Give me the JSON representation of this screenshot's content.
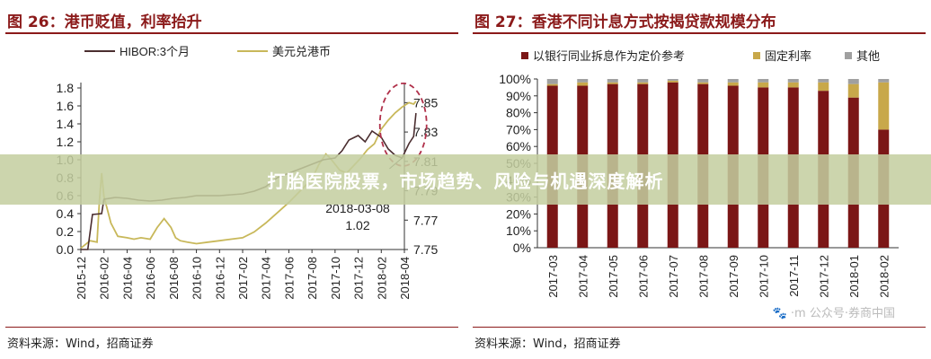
{
  "banner": {
    "text": "打胎医院股票，市场趋势、风险与机遇深度解析"
  },
  "watermark": {
    "text": "🐾 ·m 公众号·券商中国"
  },
  "left": {
    "title": "图 26：港币贬值，利率抬升",
    "source": "资料来源：Wind，招商证券"
  },
  "right": {
    "title": "图 27：香港不同计息方式按揭贷款规模分布",
    "source": "资料来源：Wind，招商证券"
  },
  "colors": {
    "hibor": "#4a2d2f",
    "usdhkd": "#c8b85a",
    "bar_main": "#7b1616",
    "bar_fixed": "#c8a84a",
    "bar_other": "#a0a0a0",
    "ellipse": "#b0304a"
  },
  "chart_data": [
    {
      "type": "line",
      "title": "",
      "left_axis": {
        "ylim": [
          0.0,
          1.8
        ],
        "ticks": [
          "0.0",
          "0.2",
          "0.4",
          "0.6",
          "0.8",
          "1.0",
          "1.2",
          "1.4",
          "1.6",
          "1.8"
        ]
      },
      "right_axis": {
        "ylim": [
          7.75,
          7.86
        ],
        "ticks": [
          "7.75",
          "7.77",
          "7.79",
          "7.81",
          "7.83",
          "7.85"
        ]
      },
      "x_ticks": [
        "2015-12",
        "2016-02",
        "2016-04",
        "2016-06",
        "2016-08",
        "2016-10",
        "2016-12",
        "2017-02",
        "2017-04",
        "2017-06",
        "2017-08",
        "2017-10",
        "2017-12",
        "2018-02",
        "2018-04"
      ],
      "annotation": {
        "date": "2018-03-08",
        "value": "1.02"
      },
      "series": [
        {
          "name": "HIBOR:3个月",
          "axis": "left",
          "x": [
            0,
            0.3,
            0.5,
            0.9,
            1.0,
            1.5,
            2,
            2.5,
            3,
            3.5,
            4,
            4.5,
            5,
            5.5,
            6,
            6.5,
            7,
            7.5,
            8,
            8.5,
            9,
            9.5,
            10,
            10.5,
            11,
            11.3,
            11.6,
            12,
            12.3,
            12.6,
            13,
            13.3,
            13.6,
            13.9,
            14.2,
            14.4,
            14.5
          ],
          "y": [
            0.0,
            0.0,
            0.39,
            0.4,
            0.56,
            0.58,
            0.57,
            0.55,
            0.54,
            0.55,
            0.57,
            0.58,
            0.6,
            0.6,
            0.6,
            0.61,
            0.62,
            0.65,
            0.7,
            0.8,
            0.85,
            0.9,
            0.95,
            1.0,
            1.02,
            1.1,
            1.22,
            1.27,
            1.2,
            1.32,
            1.25,
            1.12,
            1.05,
            1.02,
            1.18,
            1.26,
            1.52
          ]
        },
        {
          "name": "美元兑港币",
          "axis": "right",
          "x": [
            0,
            0.4,
            0.7,
            0.8,
            0.9,
            1.0,
            1.1,
            1.3,
            1.6,
            2,
            2.3,
            2.6,
            3,
            3.3,
            3.6,
            3.9,
            4.1,
            4.3,
            4.6,
            5,
            5.5,
            6,
            6.5,
            7,
            7.5,
            8,
            8.5,
            9,
            9.5,
            10,
            10.3,
            10.6,
            10.8,
            11,
            11.2,
            11.5,
            11.8,
            12.1,
            12.4,
            12.7,
            13,
            13.3,
            13.6,
            13.9,
            14.2,
            14.4,
            14.5
          ],
          "y": [
            7.751,
            7.756,
            7.755,
            7.783,
            7.802,
            7.786,
            7.78,
            7.768,
            7.759,
            7.758,
            7.757,
            7.758,
            7.757,
            7.765,
            7.771,
            7.765,
            7.758,
            7.756,
            7.755,
            7.754,
            7.755,
            7.756,
            7.757,
            7.758,
            7.762,
            7.768,
            7.775,
            7.782,
            7.79,
            7.798,
            7.808,
            7.815,
            7.812,
            7.808,
            7.804,
            7.802,
            7.807,
            7.812,
            7.818,
            7.822,
            7.832,
            7.838,
            7.843,
            7.847,
            7.85,
            7.849,
            7.851
          ]
        }
      ]
    },
    {
      "type": "bar",
      "stacked": true,
      "title": "",
      "ylim": [
        0,
        100
      ],
      "y_ticks": [
        "0%",
        "10%",
        "20%",
        "30%",
        "40%",
        "50%",
        "60%",
        "70%",
        "80%",
        "90%",
        "100%"
      ],
      "categories": [
        "2017-03",
        "2017-04",
        "2017-05",
        "2017-06",
        "2017-07",
        "2017-08",
        "2017-09",
        "2017-10",
        "2017-11",
        "2017-12",
        "2018-01",
        "2018-02"
      ],
      "legend": "top",
      "series": [
        {
          "name": "以银行同业拆息作为定价参考",
          "values": [
            96,
            96,
            97,
            97,
            98,
            97,
            96,
            95,
            95,
            93,
            89,
            70
          ]
        },
        {
          "name": "固定利率",
          "values": [
            1,
            2,
            1,
            1,
            1,
            1,
            2,
            3,
            3,
            5,
            8,
            28
          ]
        },
        {
          "name": "其他",
          "values": [
            3,
            2,
            2,
            2,
            1,
            2,
            2,
            2,
            2,
            2,
            3,
            2
          ]
        }
      ]
    }
  ]
}
